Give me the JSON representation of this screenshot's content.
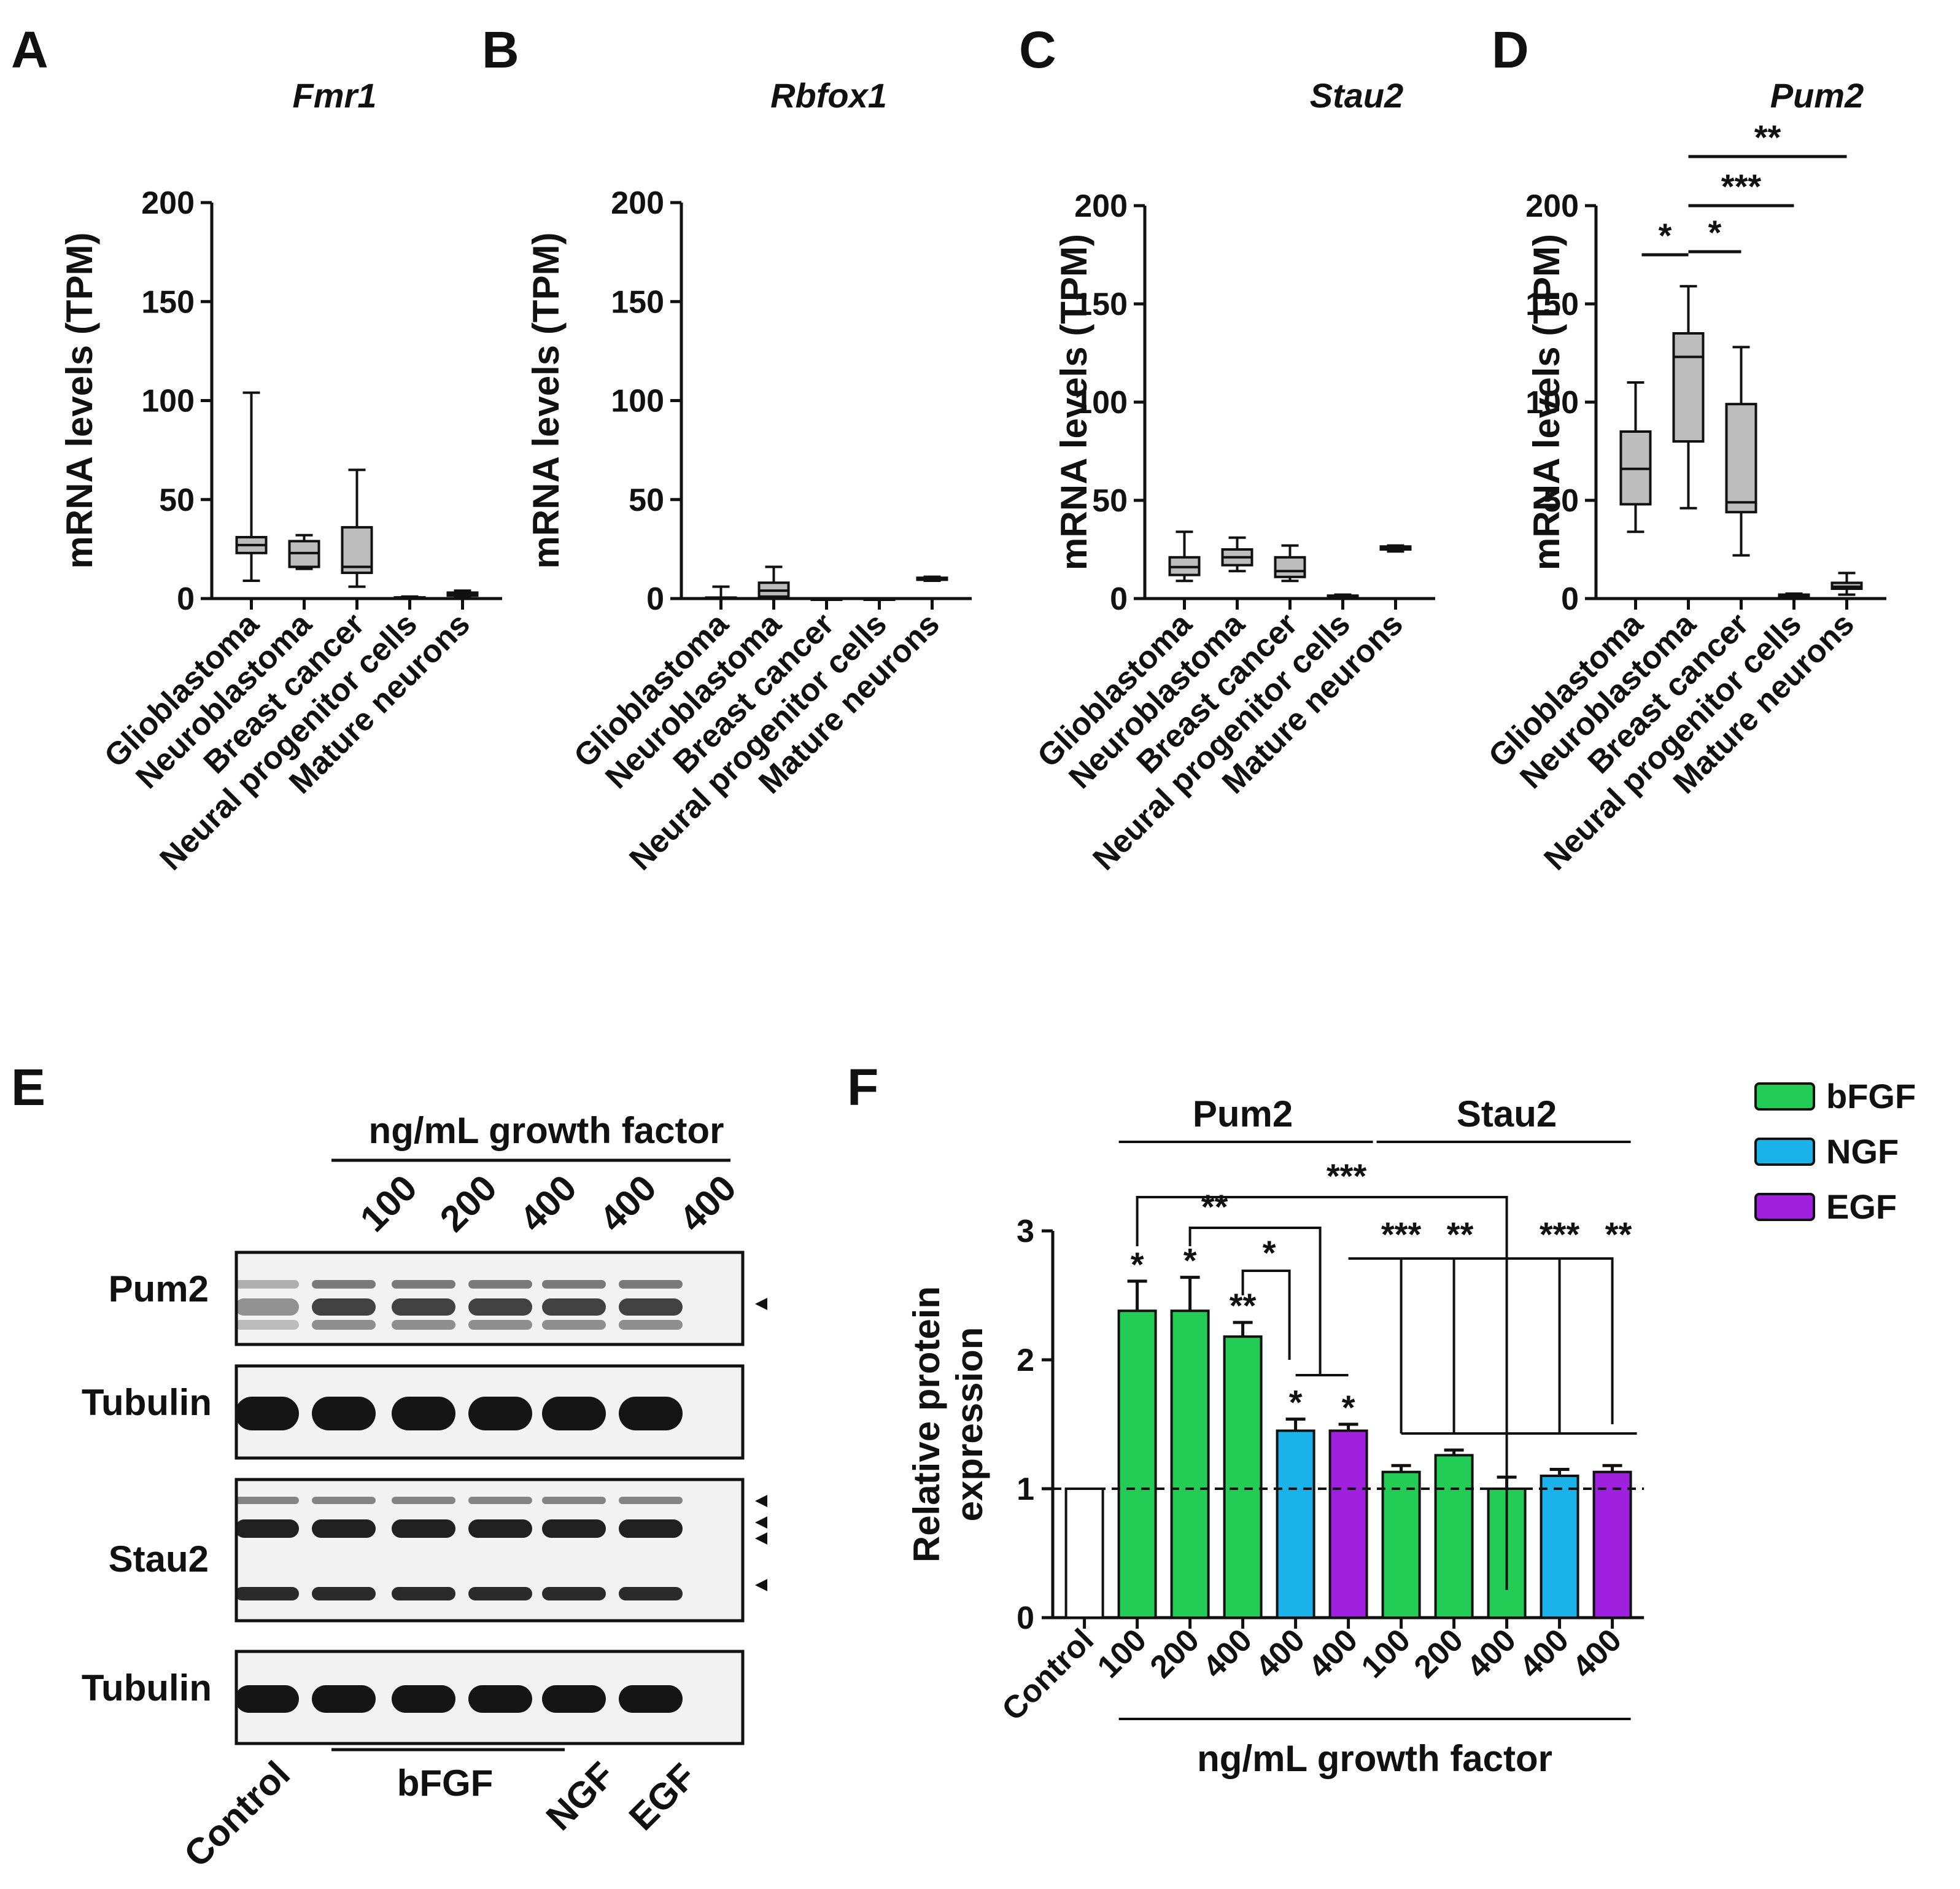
{
  "panels": {
    "A": "A",
    "B": "B",
    "C": "C",
    "D": "D",
    "E": "E",
    "F": "F"
  },
  "chart_data": [
    {
      "id": "A",
      "type": "box",
      "title": "Fmr1",
      "ylabel": "mRNA levels (TPM)",
      "ylim": [
        0,
        200
      ],
      "yticks": [
        "0",
        "50",
        "100",
        "150",
        "200"
      ],
      "categories": [
        "Glioblastoma",
        "Neuroblastoma",
        "Breast cancer",
        "Neural progenitor cells",
        "Mature neurons"
      ],
      "boxes": [
        {
          "min": 9,
          "q1": 23,
          "median": 27,
          "q3": 31,
          "max": 104
        },
        {
          "min": 15,
          "q1": 16,
          "median": 23,
          "q3": 29,
          "max": 32
        },
        {
          "min": 6,
          "q1": 13,
          "median": 16,
          "q3": 36,
          "max": 65
        },
        {
          "min": 0,
          "q1": 0.2,
          "median": 0.4,
          "q3": 0.6,
          "max": 1
        },
        {
          "min": 1,
          "q1": 1.5,
          "median": 2,
          "q3": 3,
          "max": 4
        }
      ]
    },
    {
      "id": "B",
      "type": "box",
      "title": "Rbfox1",
      "ylabel": "mRNA levels (TPM)",
      "ylim": [
        0,
        200
      ],
      "yticks": [
        "0",
        "50",
        "100",
        "150",
        "200"
      ],
      "categories": [
        "Glioblastoma",
        "Neuroblastoma",
        "Breast cancer",
        "Neural progenitor cells",
        "Mature neurons"
      ],
      "boxes": [
        {
          "min": 0,
          "q1": 0,
          "median": 0,
          "q3": 0.5,
          "max": 6
        },
        {
          "min": 0,
          "q1": 1,
          "median": 4,
          "q3": 8,
          "max": 16
        },
        {
          "min": 0,
          "q1": 0,
          "median": 0,
          "q3": 0,
          "max": 0
        },
        {
          "min": 0,
          "q1": 0,
          "median": 0,
          "q3": 0,
          "max": 0
        },
        {
          "min": 9,
          "q1": 9.5,
          "median": 10,
          "q3": 10.5,
          "max": 11
        }
      ]
    },
    {
      "id": "C",
      "type": "box",
      "title": "Stau2",
      "ylabel": "mRNA levels (TPM)",
      "ylim": [
        0,
        200
      ],
      "yticks": [
        "0",
        "50",
        "100",
        "150",
        "200"
      ],
      "categories": [
        "Glioblastoma",
        "Neuroblastoma",
        "Breast cancer",
        "Neural progenitor cells",
        "Mature neurons"
      ],
      "boxes": [
        {
          "min": 9,
          "q1": 12,
          "median": 16,
          "q3": 21,
          "max": 34
        },
        {
          "min": 14,
          "q1": 17,
          "median": 21,
          "q3": 25,
          "max": 31
        },
        {
          "min": 9,
          "q1": 11,
          "median": 14,
          "q3": 21,
          "max": 27
        },
        {
          "min": 0,
          "q1": 0.5,
          "median": 1,
          "q3": 1.5,
          "max": 2
        },
        {
          "min": 24,
          "q1": 25,
          "median": 26,
          "q3": 26.5,
          "max": 27
        }
      ]
    },
    {
      "id": "D",
      "type": "box",
      "title": "Pum2",
      "ylabel": "mRNA levels (TPM)",
      "ylim": [
        0,
        200
      ],
      "yticks": [
        "0",
        "50",
        "100",
        "150",
        "200"
      ],
      "categories": [
        "Glioblastoma",
        "Neuroblastoma",
        "Breast cancer",
        "Neural progenitor cells",
        "Mature neurons"
      ],
      "boxes": [
        {
          "min": 34,
          "q1": 48,
          "median": 66,
          "q3": 85,
          "max": 110
        },
        {
          "min": 46,
          "q1": 80,
          "median": 123,
          "q3": 135,
          "max": 159
        },
        {
          "min": 22,
          "q1": 44,
          "median": 49,
          "q3": 99,
          "max": 128
        },
        {
          "min": 0.5,
          "q1": 1,
          "median": 1.5,
          "q3": 2,
          "max": 2.5
        },
        {
          "min": 2,
          "q1": 5,
          "median": 6,
          "q3": 8,
          "max": 13
        }
      ],
      "significance": [
        {
          "from": 0,
          "to": 1,
          "label": "*"
        },
        {
          "from": 1,
          "to": 2,
          "label": "*"
        },
        {
          "from": 1,
          "to": 3,
          "label": "***"
        },
        {
          "from": 1,
          "to": 4,
          "label": "**"
        }
      ]
    },
    {
      "id": "F",
      "type": "bar",
      "ylabel_lines": [
        "Relative protein",
        "expression"
      ],
      "ylim": [
        0,
        3
      ],
      "yticks": [
        "0",
        "1",
        "2",
        "3"
      ],
      "reference_line": 1,
      "categories": [
        "Control",
        "100",
        "200",
        "400",
        "400",
        "400",
        "100",
        "200",
        "400",
        "400",
        "400"
      ],
      "values": [
        1.0,
        2.38,
        2.38,
        2.18,
        1.45,
        1.45,
        1.13,
        1.26,
        1.0,
        1.1,
        1.13
      ],
      "errors": [
        0,
        0.23,
        0.26,
        0.11,
        0.09,
        0.05,
        0.05,
        0.04,
        0.09,
        0.05,
        0.05
      ],
      "groups": [
        "control",
        "bFGF",
        "bFGF",
        "bFGF",
        "NGF",
        "EGF",
        "bFGF",
        "bFGF",
        "bFGF",
        "NGF",
        "EGF"
      ],
      "bar_stars": [
        "",
        "*",
        "*",
        "**",
        "*",
        "*",
        "",
        "",
        "",
        "",
        ""
      ],
      "section_labels": [
        "Pum2",
        "Stau2"
      ],
      "xlabel": "ng/mL growth factor",
      "legend": [
        {
          "label": "bFGF",
          "color": "#22cc55"
        },
        {
          "label": "NGF",
          "color": "#1ab2e8"
        },
        {
          "label": "EGF",
          "color": "#a020e0"
        }
      ],
      "comparison_labels": {
        "top": "***",
        "second": "**",
        "third": "*",
        "stau2_bf": "***",
        "stau2_200": "**",
        "stau2_ngf": "***",
        "stau2_egf": "**"
      }
    }
  ],
  "blot": {
    "header": "ng/mL growth factor",
    "lane_doses": [
      "100",
      "200",
      "400",
      "400",
      "400"
    ],
    "bands": [
      "Pum2",
      "Tubulin",
      "Stau2",
      "Tubulin"
    ],
    "lanes": [
      "Control",
      "bFGF",
      "NGF",
      "EGF"
    ]
  },
  "colors": {
    "box_fill": "#bdbdbd",
    "control_fill": "#ffffff"
  }
}
